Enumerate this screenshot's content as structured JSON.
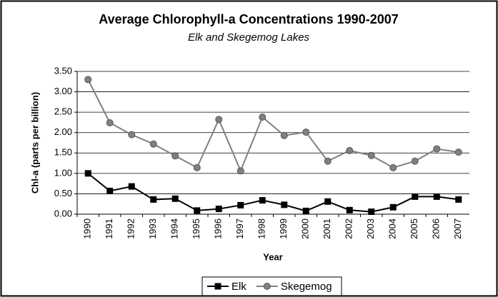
{
  "chart_data": {
    "type": "line",
    "title": "Average Chlorophyll-a Concentrations 1990-2007",
    "subtitle": "Elk and Skegemog Lakes",
    "y_label": "Chl-a (parts per billion)",
    "x_label": "Year",
    "categories": [
      "1990",
      "1991",
      "1992",
      "1993",
      "1994",
      "1995",
      "1996",
      "1997",
      "1998",
      "1999",
      "2000",
      "2001",
      "2002",
      "2003",
      "2004",
      "2005",
      "2006",
      "2007"
    ],
    "series": [
      {
        "name": "Elk",
        "color": "#000000",
        "marker": "square",
        "values": [
          1.0,
          0.57,
          0.68,
          0.36,
          0.38,
          0.09,
          0.13,
          0.22,
          0.34,
          0.23,
          0.08,
          0.31,
          0.1,
          0.06,
          0.17,
          0.43,
          0.43,
          0.36
        ]
      },
      {
        "name": "Skegemog",
        "color": "#808080",
        "marker": "circle",
        "values": [
          3.3,
          2.24,
          1.95,
          1.72,
          1.43,
          1.14,
          2.32,
          1.06,
          2.38,
          1.93,
          2.01,
          1.3,
          1.56,
          1.44,
          1.14,
          1.3,
          1.6,
          1.52
        ]
      }
    ],
    "ylim": [
      0,
      3.5
    ],
    "yticks": [
      {
        "value": 0,
        "label": "0.00"
      },
      {
        "value": 0.5,
        "label": "0.50"
      },
      {
        "value": 1,
        "label": "1.00"
      },
      {
        "value": 1.5,
        "label": "1.50"
      },
      {
        "value": 2,
        "label": "2.00"
      },
      {
        "value": 2.5,
        "label": "2.50"
      },
      {
        "value": 3,
        "label": "3.00"
      },
      {
        "value": 3.5,
        "label": "3.50"
      }
    ],
    "grid": true,
    "legend": "bottom"
  }
}
